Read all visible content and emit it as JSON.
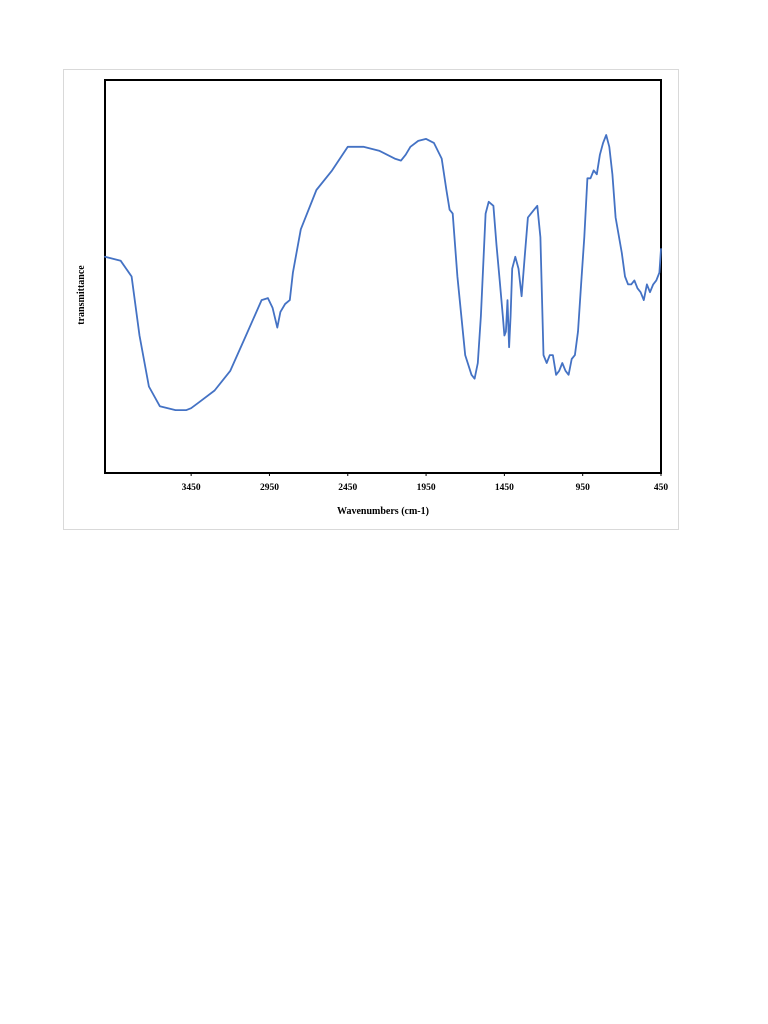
{
  "chart_data": {
    "type": "line",
    "title": "",
    "xlabel": "Wavenumbers (cm-1)",
    "ylabel": "transmittance",
    "xlim": [
      4000,
      450
    ],
    "x_reversed": true,
    "ylim": [
      0,
      100
    ],
    "y_ticks_shown": false,
    "grid": false,
    "legend": "none",
    "x_ticks": [
      3450,
      2950,
      2450,
      1950,
      1450,
      950,
      450
    ],
    "x_tick_labels": [
      "3450",
      "2950",
      "2450",
      "1950",
      "1450",
      "950",
      "450"
    ],
    "series": [
      {
        "color": "#4472c4",
        "x": [
          4000,
          3900,
          3830,
          3780,
          3720,
          3650,
          3550,
          3480,
          3450,
          3400,
          3300,
          3200,
          3100,
          3000,
          2960,
          2930,
          2900,
          2880,
          2850,
          2820,
          2800,
          2750,
          2650,
          2550,
          2450,
          2350,
          2250,
          2150,
          2110,
          2080,
          2050,
          2000,
          1950,
          1900,
          1850,
          1820,
          1800,
          1780,
          1750,
          1700,
          1660,
          1640,
          1620,
          1600,
          1570,
          1550,
          1520,
          1500,
          1480,
          1460,
          1450,
          1440,
          1430,
          1420,
          1410,
          1400,
          1380,
          1360,
          1340,
          1320,
          1300,
          1280,
          1260,
          1240,
          1220,
          1200,
          1180,
          1160,
          1140,
          1120,
          1100,
          1080,
          1060,
          1040,
          1020,
          1000,
          980,
          960,
          940,
          920,
          900,
          880,
          860,
          840,
          820,
          800,
          780,
          760,
          740,
          700,
          680,
          660,
          640,
          620,
          600,
          580,
          560,
          540,
          520,
          500,
          480,
          460,
          450
        ],
        "y": [
          55,
          54,
          50,
          35,
          22,
          17,
          16,
          16,
          16.5,
          18,
          21,
          26,
          35,
          44,
          44.5,
          42,
          37,
          41,
          43,
          44,
          51,
          62,
          72,
          77,
          83,
          83,
          82,
          80,
          79.5,
          81,
          83,
          84.5,
          85,
          84,
          80,
          72,
          67,
          66,
          50,
          30,
          25,
          24,
          28,
          40,
          66,
          69,
          68,
          58,
          49,
          40,
          35,
          36,
          44,
          32,
          40,
          52,
          55,
          52,
          45,
          55,
          65,
          66,
          67,
          68,
          60,
          30,
          28,
          30,
          30,
          25,
          26,
          28,
          26,
          25,
          29,
          30,
          36,
          48,
          60,
          75,
          75,
          77,
          76,
          81,
          84,
          86,
          83,
          76,
          65,
          56,
          50,
          48,
          48,
          49,
          47,
          46,
          44,
          48,
          46,
          48,
          49,
          51,
          57
        ]
      }
    ]
  }
}
